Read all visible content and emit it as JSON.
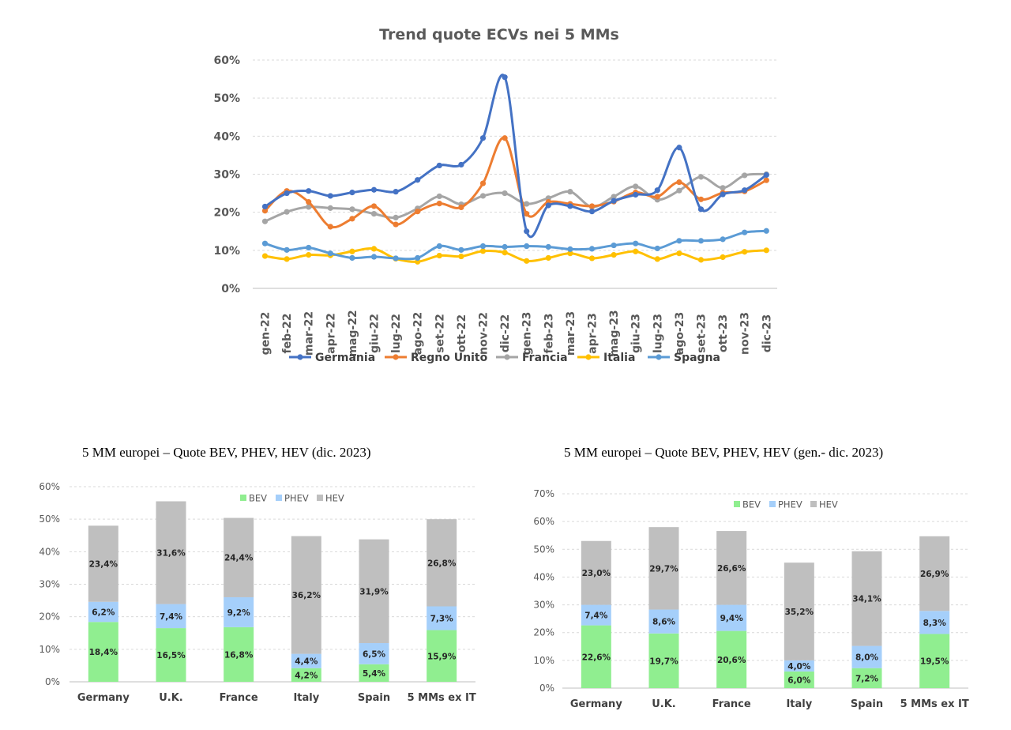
{
  "chart_data": [
    {
      "type": "line",
      "title": "Trend quote ECVs nei 5 MMs",
      "categories": [
        "gen-22",
        "feb-22",
        "mar-22",
        "apr-22",
        "mag-22",
        "giu-22",
        "lug-22",
        "ago-22",
        "set-22",
        "ott-22",
        "nov-22",
        "dic-22",
        "gen-23",
        "feb-23",
        "mar-23",
        "apr-23",
        "mag-23",
        "giu-23",
        "lug-23",
        "ago-23",
        "set-23",
        "ott-23",
        "nov-23",
        "dic-23"
      ],
      "yticks": [
        "0%",
        "10%",
        "20%",
        "30%",
        "40%",
        "50%",
        "60%"
      ],
      "ylim": [
        0,
        60
      ],
      "grid": true,
      "legend": "bottom",
      "series": [
        {
          "name": "Germania",
          "color": "#4472C4",
          "values": [
            21.5,
            25,
            25.6,
            24.3,
            25.2,
            25.9,
            25.4,
            28.5,
            32.3,
            32.5,
            39.5,
            55.5,
            15,
            21.8,
            21.6,
            20.2,
            23,
            24.6,
            25.8,
            37,
            20.8,
            24.7,
            25.8,
            29.8
          ]
        },
        {
          "name": "Regno Unito",
          "color": "#ED7D31",
          "values": [
            20.4,
            25.6,
            22.7,
            16.2,
            18.3,
            21.6,
            16.8,
            20.2,
            22.3,
            21.3,
            27.6,
            39.5,
            19.6,
            22.7,
            22.2,
            21.6,
            22.8,
            25.2,
            24.1,
            27.9,
            23.4,
            25.1,
            25.5,
            28.4
          ]
        },
        {
          "name": "Francia",
          "color": "#A5A5A5",
          "values": [
            17.6,
            20.1,
            21.4,
            21.1,
            20.8,
            19.6,
            18.6,
            21,
            24.2,
            22.1,
            24.3,
            25,
            22.2,
            23.7,
            25.4,
            21.4,
            24.1,
            26.8,
            23.3,
            25.7,
            29.3,
            26.4,
            29.7,
            30
          ]
        },
        {
          "name": "Italia",
          "color": "#FFC000",
          "values": [
            8.5,
            7.7,
            8.8,
            8.7,
            9.7,
            10.4,
            7.8,
            7,
            8.6,
            8.4,
            9.8,
            9.4,
            7.2,
            8,
            9.2,
            7.9,
            8.8,
            9.7,
            7.7,
            9.2,
            7.5,
            8.2,
            9.6,
            10
          ]
        },
        {
          "name": "Spagna",
          "color": "#5B9BD5",
          "values": [
            11.8,
            10.1,
            10.7,
            9.2,
            8,
            8.3,
            7.9,
            8,
            11.1,
            10.1,
            11.1,
            10.9,
            11.1,
            10.9,
            10.3,
            10.4,
            11.3,
            11.8,
            10.5,
            12.5,
            12.5,
            12.9,
            14.7,
            15.1
          ]
        }
      ]
    },
    {
      "type": "bar",
      "stacked": true,
      "title": "5 MM europei – Quote BEV, PHEV, HEV (dic. 2023)",
      "categories": [
        "Germany",
        "U.K.",
        "France",
        "Italy",
        "Spain",
        "5 MMs ex IT"
      ],
      "yticks": [
        "0%",
        "10%",
        "20%",
        "30%",
        "40%",
        "50%",
        "60%"
      ],
      "ylim": [
        0,
        60
      ],
      "legend": "top-right",
      "series": [
        {
          "name": "BEV",
          "color": "#90EE90",
          "values": [
            18.4,
            16.5,
            16.8,
            4.2,
            5.4,
            15.9
          ],
          "labels": [
            "18,4%",
            "16,5%",
            "16,8%",
            "4,2%",
            "5,4%",
            "15,9%"
          ]
        },
        {
          "name": "PHEV",
          "color": "#A5CFFA",
          "values": [
            6.2,
            7.4,
            9.2,
            4.4,
            6.5,
            7.3
          ],
          "labels": [
            "6,2%",
            "7,4%",
            "9,2%",
            "4,4%",
            "6,5%",
            "7,3%"
          ]
        },
        {
          "name": "HEV",
          "color": "#BFBFBF",
          "values": [
            23.4,
            31.6,
            24.4,
            36.2,
            31.9,
            26.8
          ],
          "labels": [
            "23,4%",
            "31,6%",
            "24,4%",
            "36,2%",
            "31,9%",
            "26,8%"
          ]
        }
      ]
    },
    {
      "type": "bar",
      "stacked": true,
      "title": "5 MM europei – Quote BEV, PHEV, HEV (gen.- dic. 2023)",
      "categories": [
        "Germany",
        "U.K.",
        "France",
        "Italy",
        "Spain",
        "5 MMs ex IT"
      ],
      "yticks": [
        "0%",
        "10%",
        "20%",
        "30%",
        "40%",
        "50%",
        "60%",
        "70%"
      ],
      "ylim": [
        0,
        70
      ],
      "legend": "top-right",
      "series": [
        {
          "name": "BEV",
          "color": "#90EE90",
          "values": [
            22.6,
            19.7,
            20.6,
            6.0,
            7.2,
            19.5
          ],
          "labels": [
            "22,6%",
            "19,7%",
            "20,6%",
            "6,0%",
            "7,2%",
            "19,5%"
          ]
        },
        {
          "name": "PHEV",
          "color": "#A5CFFA",
          "values": [
            7.4,
            8.6,
            9.4,
            4.0,
            8.0,
            8.3
          ],
          "labels": [
            "7,4%",
            "8,6%",
            "9,4%",
            "4,0%",
            "8,0%",
            "8,3%"
          ]
        },
        {
          "name": "HEV",
          "color": "#BFBFBF",
          "values": [
            23.0,
            29.7,
            26.6,
            35.2,
            34.1,
            26.9
          ],
          "labels": [
            "23,0%",
            "29,7%",
            "26,6%",
            "35,2%",
            "34,1%",
            "26,9%"
          ]
        }
      ]
    }
  ]
}
